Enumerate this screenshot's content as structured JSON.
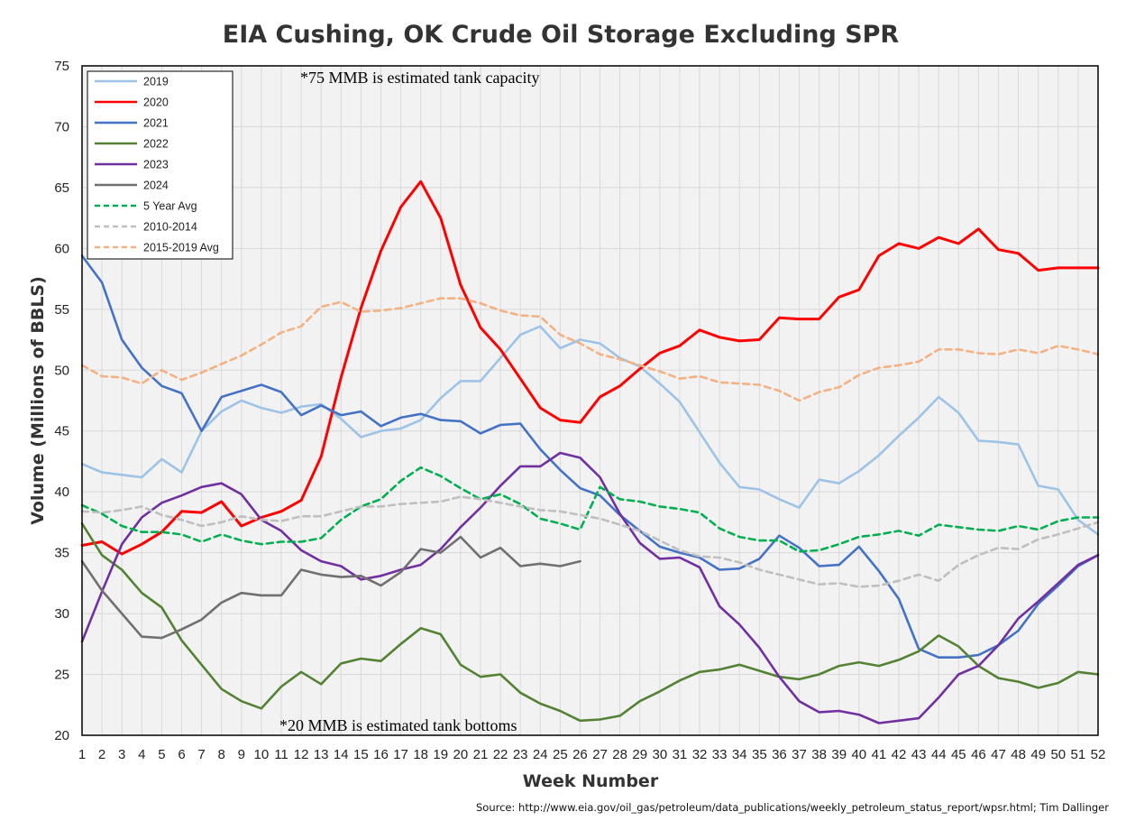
{
  "chart_data": {
    "type": "line",
    "title": "EIA Cushing, OK Crude Oil Storage Excluding SPR",
    "xlabel": "Week Number",
    "ylabel": "Volume (Millions of BBLS)",
    "xlim": [
      1,
      52
    ],
    "ylim": [
      20,
      75
    ],
    "x_ticks": [
      1,
      2,
      3,
      4,
      5,
      6,
      7,
      8,
      9,
      10,
      11,
      12,
      13,
      14,
      15,
      16,
      17,
      18,
      19,
      20,
      21,
      22,
      23,
      24,
      25,
      26,
      27,
      28,
      29,
      30,
      31,
      32,
      33,
      34,
      35,
      36,
      37,
      38,
      39,
      40,
      41,
      42,
      43,
      44,
      45,
      46,
      47,
      48,
      49,
      50,
      51,
      52
    ],
    "y_ticks": [
      20,
      25,
      30,
      35,
      40,
      45,
      50,
      55,
      60,
      65,
      70,
      75
    ],
    "grid": true,
    "legend_position": "top-left",
    "annotations": [
      "*75 MMB is estimated tank capacity",
      "*20 MMB is estimated tank bottoms"
    ],
    "source": "Source: http://www.eia.gov/oil_gas/petroleum/data_publications/weekly_petroleum_status_report/wpsr.html; Tim Dallinger",
    "series": [
      {
        "name": "2019",
        "color": "#9dc3e6",
        "dash": "solid",
        "values": [
          42.3,
          41.6,
          41.4,
          41.2,
          42.7,
          41.6,
          45.0,
          46.6,
          47.5,
          46.9,
          46.5,
          47.0,
          47.2,
          46.0,
          44.5,
          45.0,
          45.2,
          45.9,
          47.7,
          49.1,
          49.1,
          51.0,
          52.9,
          53.6,
          51.8,
          52.5,
          52.2,
          51.0,
          50.3,
          48.9,
          47.4,
          44.9,
          42.4,
          40.4,
          40.2,
          39.4,
          38.7,
          41.0,
          40.7,
          41.7,
          43.0,
          44.6,
          46.1,
          47.8,
          46.5,
          44.2,
          44.1,
          43.9,
          40.5,
          40.2,
          37.7,
          36.5
        ]
      },
      {
        "name": "2020",
        "color": "#ff0000",
        "dash": "solid",
        "values": [
          35.6,
          35.9,
          34.9,
          35.7,
          36.7,
          38.4,
          38.3,
          39.2,
          37.2,
          37.9,
          38.4,
          39.3,
          42.9,
          49.4,
          55.1,
          59.8,
          63.4,
          65.5,
          62.5,
          57.0,
          53.5,
          51.7,
          49.3,
          46.9,
          45.9,
          45.7,
          47.8,
          48.7,
          50.1,
          51.4,
          52.0,
          53.3,
          52.7,
          52.4,
          52.5,
          54.3,
          54.2,
          54.2,
          56.0,
          56.6,
          59.4,
          60.4,
          60.0,
          60.9,
          60.4,
          61.6,
          59.9,
          59.6,
          58.2,
          58.4,
          58.4,
          58.4
        ]
      },
      {
        "name": "2021",
        "color": "#4472c4",
        "dash": "solid",
        "values": [
          59.4,
          57.2,
          52.5,
          50.2,
          48.7,
          48.1,
          45.0,
          47.8,
          48.3,
          48.8,
          48.2,
          46.3,
          47.1,
          46.3,
          46.6,
          45.4,
          46.1,
          46.4,
          45.9,
          45.8,
          44.8,
          45.5,
          45.6,
          43.5,
          41.8,
          40.3,
          39.7,
          38.1,
          36.8,
          35.5,
          35.0,
          34.6,
          33.6,
          33.7,
          34.5,
          36.4,
          35.4,
          33.9,
          34.0,
          35.5,
          33.5,
          31.2,
          27.1,
          26.4,
          26.4,
          26.6,
          27.4,
          28.6,
          30.8,
          32.3,
          33.9,
          34.8
        ]
      },
      {
        "name": "2022",
        "color": "#548235",
        "dash": "solid",
        "values": [
          37.4,
          34.8,
          33.6,
          31.7,
          30.5,
          27.8,
          25.8,
          23.8,
          22.8,
          22.2,
          24.0,
          25.2,
          24.2,
          25.9,
          26.3,
          26.1,
          27.5,
          28.8,
          28.3,
          25.8,
          24.8,
          25.0,
          23.5,
          22.6,
          22.0,
          21.2,
          21.3,
          21.6,
          22.8,
          23.6,
          24.5,
          25.2,
          25.4,
          25.8,
          25.3,
          24.8,
          24.6,
          25.0,
          25.7,
          26.0,
          25.7,
          26.2,
          26.9,
          28.2,
          27.3,
          25.7,
          24.7,
          24.4,
          23.9,
          24.3,
          25.2,
          25.0
        ]
      },
      {
        "name": "2023",
        "color": "#7030a0",
        "dash": "solid",
        "values": [
          27.7,
          31.8,
          35.7,
          37.9,
          39.1,
          39.7,
          40.4,
          40.7,
          39.8,
          37.7,
          36.8,
          35.2,
          34.3,
          33.9,
          32.8,
          33.1,
          33.6,
          34.0,
          35.3,
          37.1,
          38.7,
          40.5,
          42.1,
          42.1,
          43.2,
          42.8,
          41.2,
          38.2,
          35.8,
          34.5,
          34.6,
          33.8,
          30.6,
          29.1,
          27.2,
          24.8,
          22.8,
          21.9,
          22.0,
          21.7,
          21.0,
          21.2,
          21.4,
          23.1,
          25.0,
          25.7,
          27.4,
          29.6,
          31.0,
          32.5,
          34.0,
          34.8
        ]
      },
      {
        "name": "2024",
        "color": "#707070",
        "dash": "solid",
        "values": [
          34.3,
          31.9,
          30.0,
          28.1,
          28.0,
          28.7,
          29.5,
          30.9,
          31.7,
          31.5,
          31.5,
          33.6,
          33.2,
          33.0,
          33.1,
          32.3,
          33.4,
          35.3,
          35.0,
          36.3,
          34.6,
          35.4,
          33.9,
          34.1,
          33.9,
          34.3
        ]
      },
      {
        "name": "5 Year Avg",
        "color": "#00b050",
        "dash": "dashed",
        "values": [
          38.9,
          38.2,
          37.2,
          36.7,
          36.7,
          36.5,
          35.9,
          36.5,
          36.0,
          35.7,
          35.9,
          35.9,
          36.2,
          37.7,
          38.8,
          39.4,
          40.9,
          42.0,
          41.3,
          40.3,
          39.4,
          39.8,
          39.0,
          37.8,
          37.4,
          36.9,
          40.4,
          39.4,
          39.2,
          38.8,
          38.6,
          38.3,
          37.0,
          36.3,
          36.0,
          36.0,
          35.1,
          35.2,
          35.7,
          36.3,
          36.5,
          36.8,
          36.4,
          37.3,
          37.1,
          36.9,
          36.8,
          37.2,
          36.9,
          37.6,
          37.9,
          37.9
        ]
      },
      {
        "name": "2010-2014",
        "color": "#bfbfbf",
        "dash": "dashed",
        "values": [
          38.4,
          38.3,
          38.5,
          38.8,
          38.1,
          37.7,
          37.2,
          37.5,
          38.0,
          37.7,
          37.6,
          38.0,
          38.0,
          38.4,
          38.8,
          38.8,
          39.0,
          39.1,
          39.2,
          39.6,
          39.4,
          39.1,
          38.8,
          38.5,
          38.4,
          38.1,
          37.8,
          37.3,
          36.8,
          36.0,
          35.2,
          34.7,
          34.6,
          34.2,
          33.6,
          33.2,
          32.8,
          32.4,
          32.5,
          32.2,
          32.3,
          32.7,
          33.2,
          32.7,
          34.0,
          34.8,
          35.4,
          35.3,
          36.1,
          36.5,
          37.0,
          37.5
        ]
      },
      {
        "name": "2015-2019 Avg",
        "color": "#f4b183",
        "dash": "dashed",
        "values": [
          50.4,
          49.5,
          49.4,
          48.9,
          50.0,
          49.2,
          49.8,
          50.5,
          51.2,
          52.1,
          53.1,
          53.6,
          55.2,
          55.6,
          54.8,
          54.9,
          55.1,
          55.5,
          55.9,
          55.9,
          55.5,
          54.9,
          54.5,
          54.4,
          52.9,
          52.2,
          51.3,
          50.9,
          50.4,
          49.9,
          49.3,
          49.5,
          49.0,
          48.9,
          48.8,
          48.3,
          47.5,
          48.2,
          48.6,
          49.6,
          50.2,
          50.4,
          50.7,
          51.7,
          51.7,
          51.4,
          51.3,
          51.7,
          51.4,
          52.0,
          51.7,
          51.3
        ]
      }
    ]
  }
}
